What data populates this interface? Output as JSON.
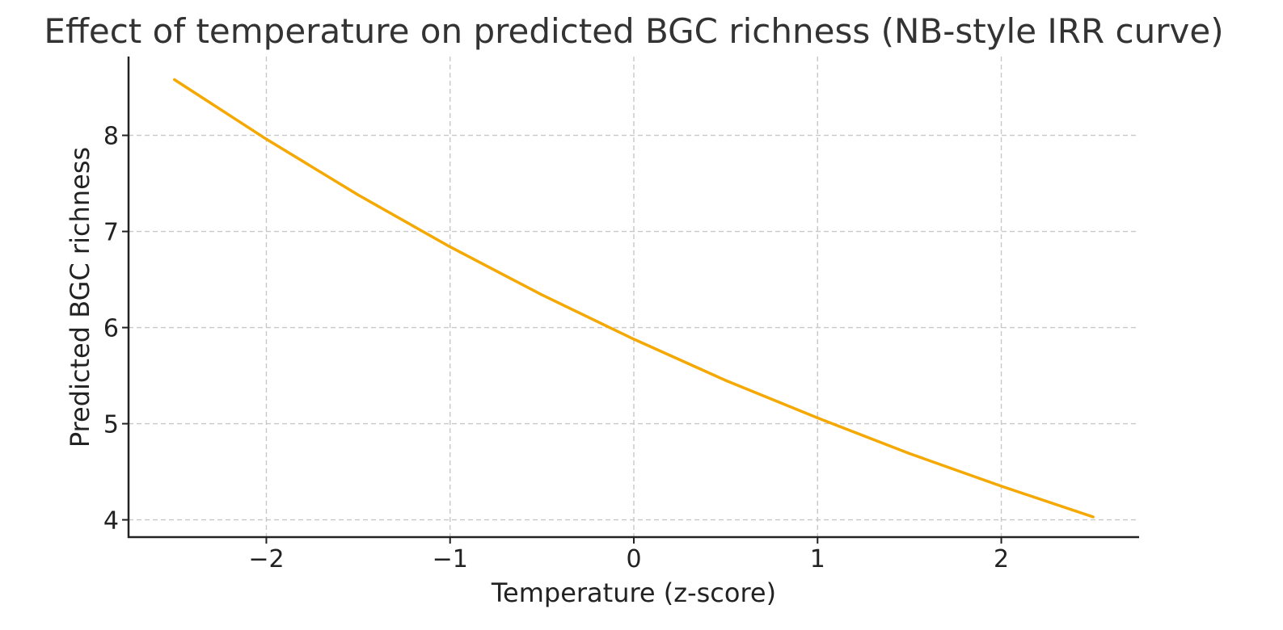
{
  "chart_data": {
    "type": "line",
    "title": "Effect of temperature on predicted BGC richness (NB-style IRR curve)",
    "xlabel": "Temperature (z-score)",
    "ylabel": "Predicted BGC richness",
    "xlim": [
      -2.75,
      2.75
    ],
    "ylim": [
      3.82,
      8.82
    ],
    "xticks": [
      -2,
      -1,
      0,
      1,
      2
    ],
    "xtick_labels": [
      "−2",
      "−1",
      "0",
      "1",
      "2"
    ],
    "yticks": [
      4,
      5,
      6,
      7,
      8
    ],
    "ytick_labels": [
      "4",
      "5",
      "6",
      "7",
      "8"
    ],
    "grid": true,
    "legend": "none",
    "series": [
      {
        "color": "#f5a800",
        "x": [
          -2.5,
          -2.0,
          -1.5,
          -1.0,
          -0.5,
          0.0,
          0.5,
          1.0,
          1.5,
          2.0,
          2.5
        ],
        "y": [
          8.58,
          7.96,
          7.38,
          6.84,
          6.34,
          5.88,
          5.45,
          5.06,
          4.69,
          4.35,
          4.03
        ]
      }
    ]
  }
}
